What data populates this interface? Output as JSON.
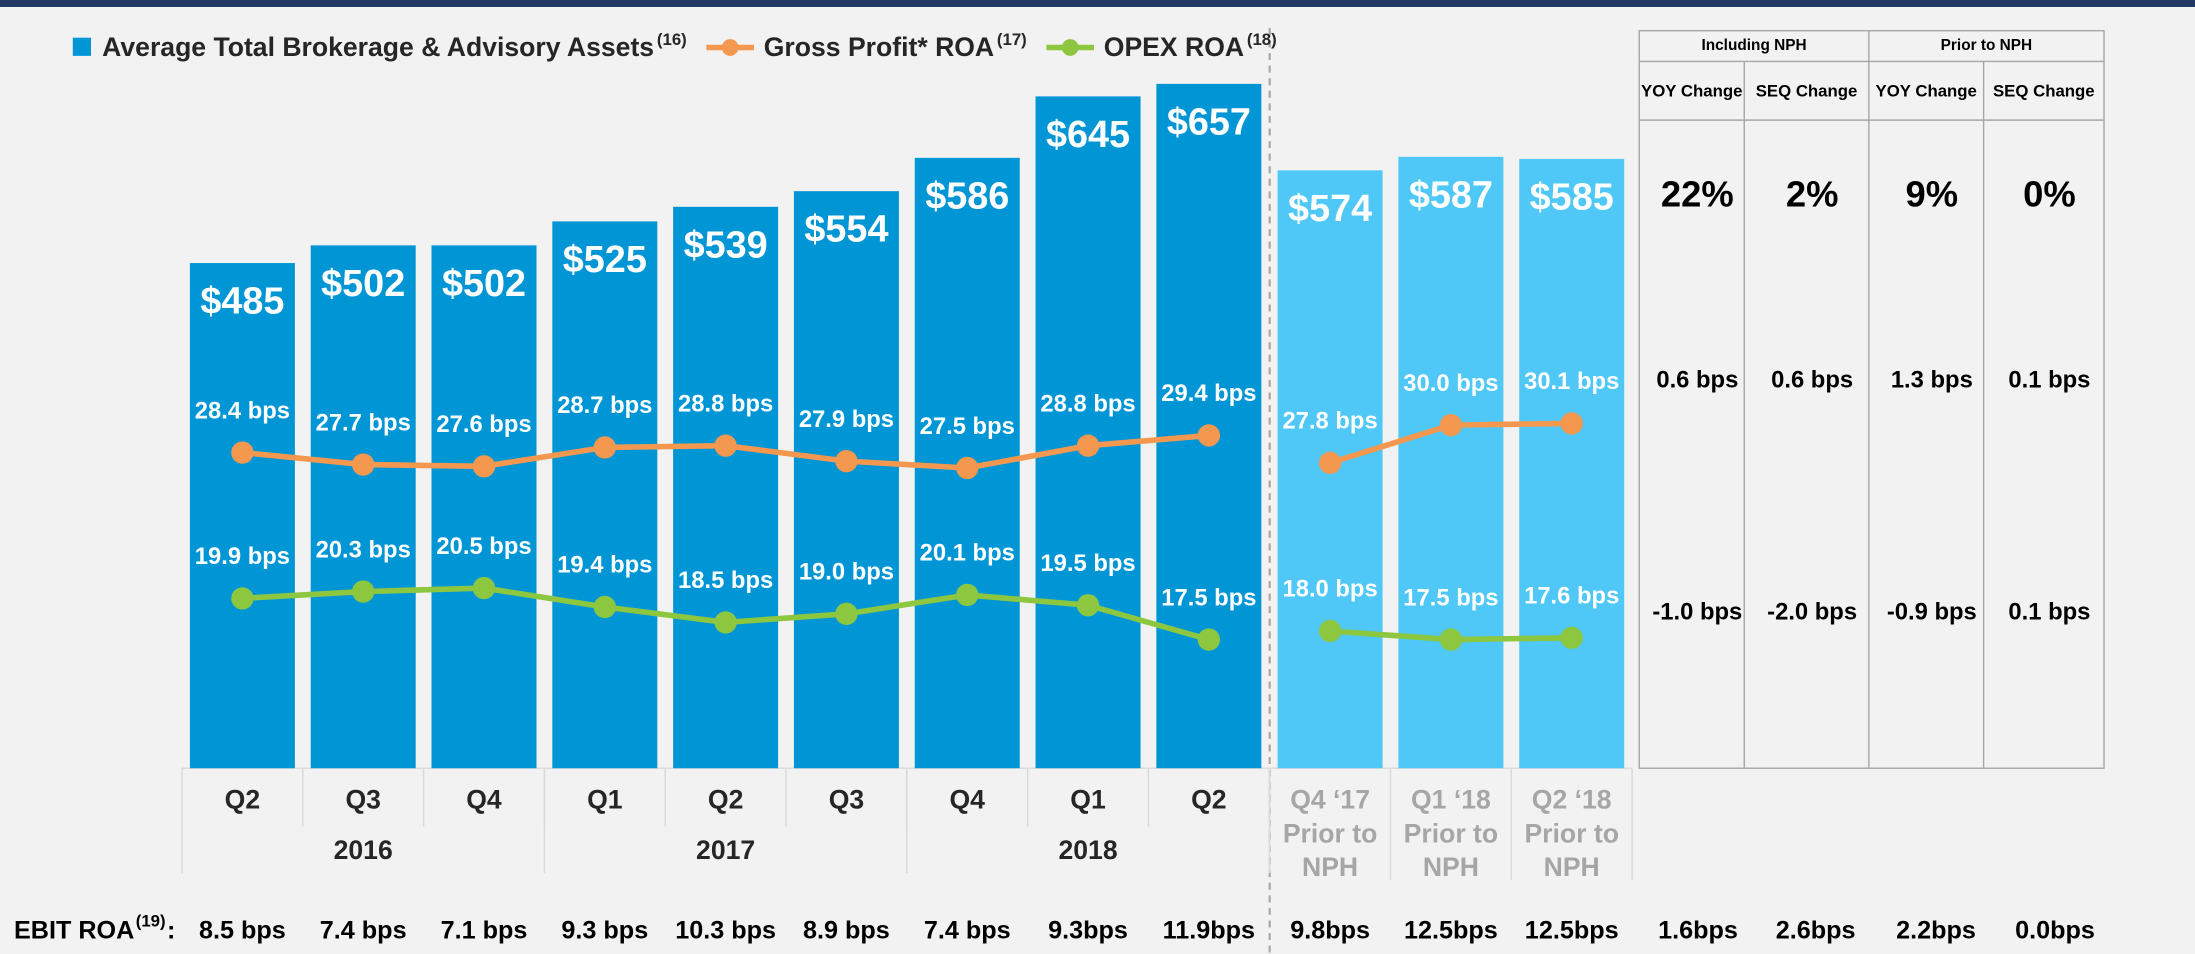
{
  "chart_data": [
    {
      "type": "bar",
      "categories": [
        "Q2",
        "Q3",
        "Q4",
        "Q1",
        "Q2",
        "Q3",
        "Q4",
        "Q1",
        "Q2"
      ],
      "groups": [
        {
          "label": "2016",
          "count": 3
        },
        {
          "label": "2017",
          "count": 3
        },
        {
          "label": "2018",
          "count": 3
        }
      ],
      "category_color": "#262626",
      "ylim": [
        0,
        700
      ],
      "y2lim": [
        10,
        52.5
      ],
      "series": [
        {
          "type": "bar",
          "name": "Average Total Brokerage & Advisory Assets",
          "note": "(16)",
          "color": "#0096d6",
          "values": [
            485,
            502,
            502,
            525,
            539,
            554,
            586,
            645,
            657
          ],
          "value_labels": [
            "$485",
            "$502",
            "$502",
            "$525",
            "$539",
            "$554",
            "$586",
            "$645",
            "$657"
          ]
        },
        {
          "type": "line",
          "axis": "y2",
          "name": "Gross Profit* ROA",
          "note": "(17)",
          "color": "#f4974f",
          "values": [
            28.4,
            27.7,
            27.6,
            28.7,
            28.8,
            27.9,
            27.5,
            28.8,
            29.4
          ],
          "value_labels": [
            "28.4 bps",
            "27.7 bps",
            "27.6 bps",
            "28.7 bps",
            "28.8 bps",
            "27.9 bps",
            "27.5 bps",
            "28.8 bps",
            "29.4 bps"
          ]
        },
        {
          "type": "line",
          "axis": "y2",
          "name": "OPEX ROA",
          "note": "(18)",
          "color": "#8dc63f",
          "values": [
            19.9,
            20.3,
            20.5,
            19.4,
            18.5,
            19.0,
            20.1,
            19.5,
            17.5
          ],
          "value_labels": [
            "19.9 bps",
            "20.3 bps",
            "20.5 bps",
            "19.4 bps",
            "18.5 bps",
            "19.0 bps",
            "20.1 bps",
            "19.5 bps",
            "17.5 bps"
          ]
        }
      ]
    },
    {
      "type": "bar",
      "categories": [
        "Q4 ‘17",
        "Q1 ‘18",
        "Q2 ‘18"
      ],
      "category_note": [
        "Prior to",
        "NPH"
      ],
      "category_color": "#a6a6a6",
      "ylim": [
        0,
        700
      ],
      "y2lim": [
        10,
        52.5
      ],
      "series": [
        {
          "type": "bar",
          "color": "#4fc8f7",
          "values": [
            574,
            587,
            585
          ],
          "value_labels": [
            "$574",
            "$587",
            "$585"
          ]
        },
        {
          "type": "line",
          "axis": "y2",
          "color": "#f4974f",
          "values": [
            27.8,
            30.0,
            30.1
          ],
          "value_labels": [
            "27.8 bps",
            "30.0 bps",
            "30.1 bps"
          ]
        },
        {
          "type": "line",
          "axis": "y2",
          "color": "#8dc63f",
          "values": [
            18.0,
            17.5,
            17.6
          ],
          "value_labels": [
            "18.0 bps",
            "17.5 bps",
            "17.6 bps"
          ]
        }
      ]
    }
  ],
  "table": {
    "group_headers": [
      "Including NPH",
      "Prior to NPH"
    ],
    "columns": [
      "YOY Change",
      "SEQ Change",
      "YOY Change",
      "SEQ Change"
    ],
    "rows": [
      [
        "22%",
        "2%",
        "9%",
        "0%"
      ],
      [
        "0.6 bps",
        "0.6 bps",
        "1.3 bps",
        "0.1 bps"
      ],
      [
        "-1.0 bps",
        "-2.0 bps",
        "-0.9 bps",
        "0.1 bps"
      ]
    ]
  },
  "ebit": {
    "label": "EBIT ROA",
    "note": "(19)",
    "suffix": ":",
    "values": [
      "8.5 bps",
      "7.4 bps",
      "7.1 bps",
      "9.3 bps",
      "10.3 bps",
      "8.9 bps",
      "7.4 bps",
      "9.3bps",
      "11.9bps",
      "9.8bps",
      "12.5bps",
      "12.5bps",
      "1.6bps",
      "2.6bps",
      "2.2bps",
      "0.0bps"
    ]
  }
}
